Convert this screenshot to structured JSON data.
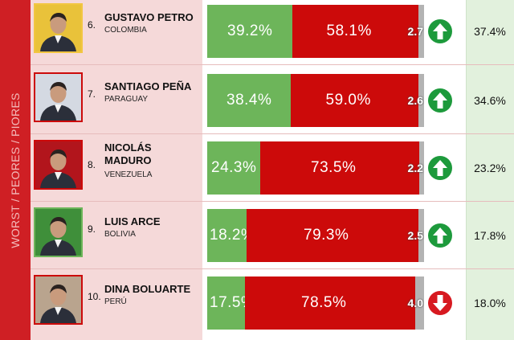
{
  "side_label": "WORST / PEORES / PIORES",
  "colors": {
    "approve": "#6db55a",
    "disapprove": "#cc0a0a",
    "no_answer": "#b3b3b3",
    "trend_up": "#1d9a3c",
    "trend_down": "#d71920"
  },
  "chart_data": {
    "type": "bar",
    "stacked": true,
    "orientation": "horizontal",
    "categories": [
      "GUSTAVO PETRO",
      "SANTIAGO PEÑA",
      "NICOLÁS MADURO",
      "LUIS ARCE",
      "DINA BOLUARTE"
    ],
    "series": [
      {
        "values": [
          39.2,
          38.4,
          24.3,
          18.2,
          17.5
        ],
        "color": "#6db55a"
      },
      {
        "values": [
          58.1,
          59.0,
          73.5,
          79.3,
          78.5
        ],
        "color": "#cc0a0a"
      },
      {
        "values": [
          2.7,
          2.6,
          2.2,
          2.5,
          4.0
        ],
        "color": "#b3b3b3"
      }
    ],
    "xlim": [
      0,
      100
    ],
    "legend": "none"
  },
  "leaders": [
    {
      "rank": "6.",
      "name_line1": "GUSTAVO PETRO",
      "name_line2": "",
      "country": "COLOMBIA",
      "approve_label": "39.2%",
      "disapprove_label": "58.1%",
      "na_label": "2.7",
      "trend": "up",
      "trend_icon": "arrow-up-icon",
      "value": "37.4%"
    },
    {
      "rank": "7.",
      "name_line1": "SANTIAGO PEÑA",
      "name_line2": "",
      "country": "PARAGUAY",
      "approve_label": "38.4%",
      "disapprove_label": "59.0%",
      "na_label": "2.6",
      "trend": "up",
      "trend_icon": "arrow-up-icon",
      "value": "34.6%"
    },
    {
      "rank": "8.",
      "name_line1": "NICOLÁS",
      "name_line2": "MADURO",
      "country": "VENEZUELA",
      "approve_label": "24.3%",
      "disapprove_label": "73.5%",
      "na_label": "2.2",
      "trend": "up",
      "trend_icon": "arrow-up-icon",
      "value": "23.2%"
    },
    {
      "rank": "9.",
      "name_line1": "LUIS ARCE",
      "name_line2": "",
      "country": "BOLIVIA",
      "approve_label": "18.2%",
      "disapprove_label": "79.3%",
      "na_label": "2.5",
      "trend": "up",
      "trend_icon": "arrow-up-icon",
      "value": "17.8%"
    },
    {
      "rank": "10.",
      "name_line1": "DINA BOLUARTE",
      "name_line2": "",
      "country": "PERÚ",
      "approve_label": "17.5%",
      "disapprove_label": "78.5%",
      "na_label": "4.0",
      "trend": "down",
      "trend_icon": "arrow-down-icon",
      "value": "18.0%"
    }
  ]
}
